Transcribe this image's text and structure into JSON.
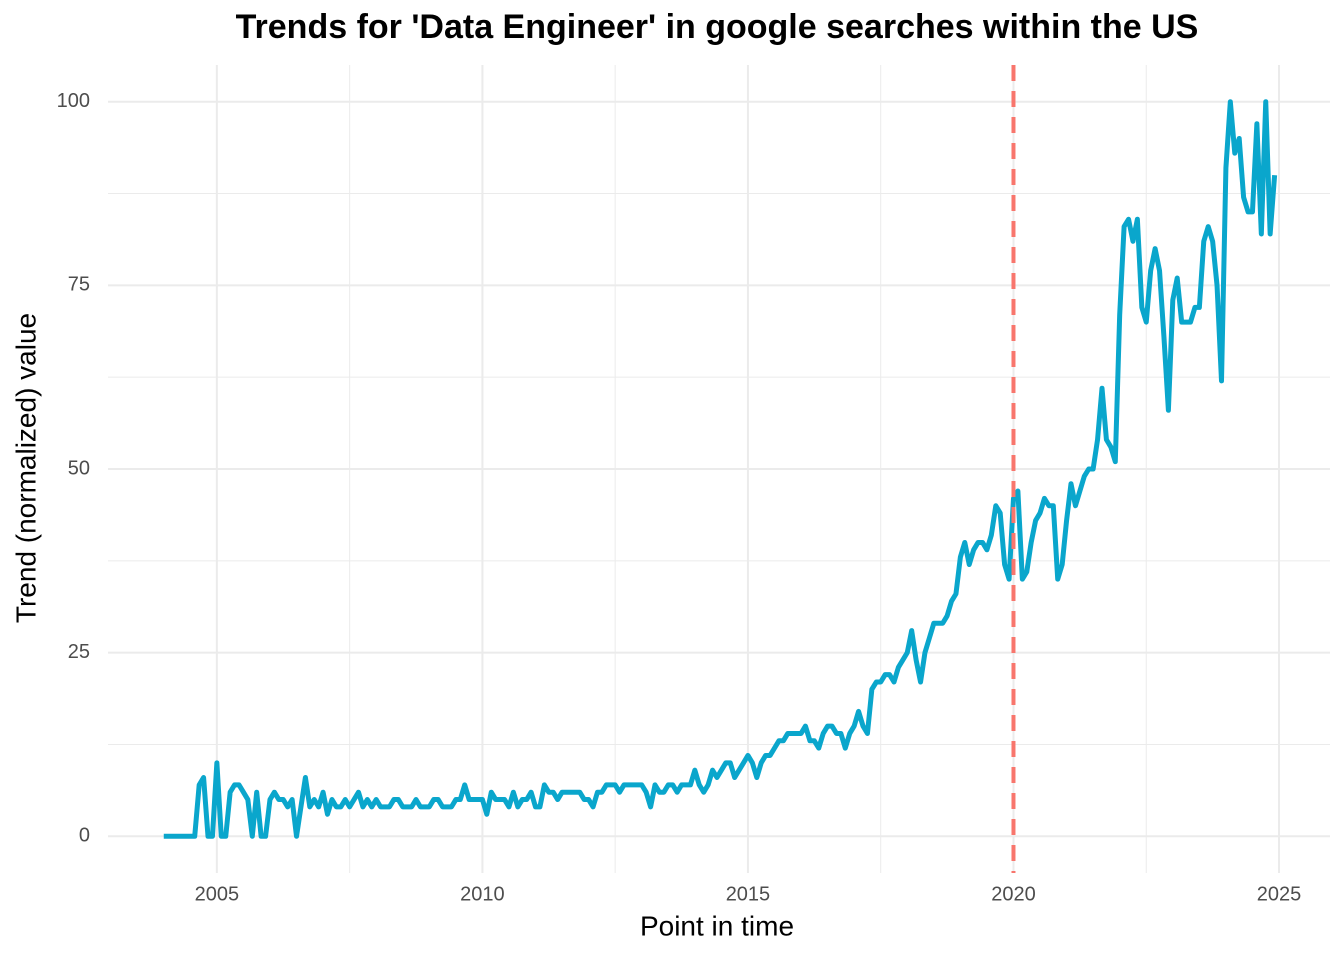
{
  "chart_data": {
    "type": "line",
    "title": "Trends for 'Data Engineer' in google searches within the US",
    "xlabel": "Point in time",
    "ylabel": "Trend (normalized) value",
    "x": [
      2004,
      2004.083,
      2004.167,
      2004.25,
      2004.333,
      2004.417,
      2004.5,
      2004.583,
      2004.667,
      2004.75,
      2004.833,
      2004.917,
      2005,
      2005.083,
      2005.167,
      2005.25,
      2005.333,
      2005.417,
      2005.5,
      2005.583,
      2005.667,
      2005.75,
      2005.833,
      2005.917,
      2006,
      2006.083,
      2006.167,
      2006.25,
      2006.333,
      2006.417,
      2006.5,
      2006.583,
      2006.667,
      2006.75,
      2006.833,
      2006.917,
      2007,
      2007.083,
      2007.167,
      2007.25,
      2007.333,
      2007.417,
      2007.5,
      2007.583,
      2007.667,
      2007.75,
      2007.833,
      2007.917,
      2008,
      2008.083,
      2008.167,
      2008.25,
      2008.333,
      2008.417,
      2008.5,
      2008.583,
      2008.667,
      2008.75,
      2008.833,
      2008.917,
      2009,
      2009.083,
      2009.167,
      2009.25,
      2009.333,
      2009.417,
      2009.5,
      2009.583,
      2009.667,
      2009.75,
      2009.833,
      2009.917,
      2010,
      2010.083,
      2010.167,
      2010.25,
      2010.333,
      2010.417,
      2010.5,
      2010.583,
      2010.667,
      2010.75,
      2010.833,
      2010.917,
      2011,
      2011.083,
      2011.167,
      2011.25,
      2011.333,
      2011.417,
      2011.5,
      2011.583,
      2011.667,
      2011.75,
      2011.833,
      2011.917,
      2012,
      2012.083,
      2012.167,
      2012.25,
      2012.333,
      2012.417,
      2012.5,
      2012.583,
      2012.667,
      2012.75,
      2012.833,
      2012.917,
      2013,
      2013.083,
      2013.167,
      2013.25,
      2013.333,
      2013.417,
      2013.5,
      2013.583,
      2013.667,
      2013.75,
      2013.833,
      2013.917,
      2014,
      2014.083,
      2014.167,
      2014.25,
      2014.333,
      2014.417,
      2014.5,
      2014.583,
      2014.667,
      2014.75,
      2014.833,
      2014.917,
      2015,
      2015.083,
      2015.167,
      2015.25,
      2015.333,
      2015.417,
      2015.5,
      2015.583,
      2015.667,
      2015.75,
      2015.833,
      2015.917,
      2016,
      2016.083,
      2016.167,
      2016.25,
      2016.333,
      2016.417,
      2016.5,
      2016.583,
      2016.667,
      2016.75,
      2016.833,
      2016.917,
      2017,
      2017.083,
      2017.167,
      2017.25,
      2017.333,
      2017.417,
      2017.5,
      2017.583,
      2017.667,
      2017.75,
      2017.833,
      2017.917,
      2018,
      2018.083,
      2018.167,
      2018.25,
      2018.333,
      2018.417,
      2018.5,
      2018.583,
      2018.667,
      2018.75,
      2018.833,
      2018.917,
      2019,
      2019.083,
      2019.167,
      2019.25,
      2019.333,
      2019.417,
      2019.5,
      2019.583,
      2019.667,
      2019.75,
      2019.833,
      2019.917,
      2020,
      2020.083,
      2020.167,
      2020.25,
      2020.333,
      2020.417,
      2020.5,
      2020.583,
      2020.667,
      2020.75,
      2020.833,
      2020.917,
      2021,
      2021.083,
      2021.167,
      2021.25,
      2021.333,
      2021.417,
      2021.5,
      2021.583,
      2021.667,
      2021.75,
      2021.833,
      2021.917,
      2022,
      2022.083,
      2022.167,
      2022.25,
      2022.333,
      2022.417,
      2022.5,
      2022.583,
      2022.667,
      2022.75,
      2022.833,
      2022.917,
      2023,
      2023.083,
      2023.167,
      2023.25,
      2023.333,
      2023.417,
      2023.5,
      2023.583,
      2023.667,
      2023.75,
      2023.833,
      2023.917,
      2024,
      2024.083,
      2024.167,
      2024.25,
      2024.333,
      2024.417,
      2024.5,
      2024.583,
      2024.667,
      2024.75,
      2024.833,
      2024.917
    ],
    "series": [
      {
        "color": "#0aa6cc",
        "values": [
          0,
          0,
          0,
          0,
          0,
          0,
          0,
          0,
          7,
          8,
          0,
          0,
          10,
          0,
          0,
          6,
          7,
          7,
          6,
          5,
          0,
          6,
          0,
          0,
          5,
          6,
          5,
          5,
          4,
          5,
          0,
          4,
          8,
          4,
          5,
          4,
          6,
          3,
          5,
          4,
          4,
          5,
          4,
          5,
          6,
          4,
          5,
          4,
          5,
          4,
          4,
          4,
          5,
          5,
          4,
          4,
          4,
          5,
          4,
          4,
          4,
          5,
          5,
          4,
          4,
          4,
          5,
          5,
          7,
          5,
          5,
          5,
          5,
          3,
          6,
          5,
          5,
          5,
          4,
          6,
          4,
          5,
          5,
          6,
          4,
          4,
          7,
          6,
          6,
          5,
          6,
          6,
          6,
          6,
          6,
          5,
          5,
          4,
          6,
          6,
          7,
          7,
          7,
          6,
          7,
          7,
          7,
          7,
          7,
          6,
          4,
          7,
          6,
          6,
          7,
          7,
          6,
          7,
          7,
          7,
          9,
          7,
          6,
          7,
          9,
          8,
          9,
          10,
          10,
          8,
          9,
          10,
          11,
          10,
          8,
          10,
          11,
          11,
          12,
          13,
          13,
          14,
          14,
          14,
          14,
          15,
          13,
          13,
          12,
          14,
          15,
          15,
          14,
          14,
          12,
          14,
          15,
          17,
          15,
          14,
          20,
          21,
          21,
          22,
          22,
          21,
          23,
          24,
          25,
          28,
          24,
          21,
          25,
          27,
          29,
          29,
          29,
          30,
          32,
          33,
          38,
          40,
          37,
          39,
          40,
          40,
          39,
          41,
          45,
          44,
          37,
          35,
          46,
          47,
          35,
          36,
          40,
          43,
          44,
          46,
          45,
          45,
          35,
          37,
          43,
          48,
          45,
          47,
          49,
          50,
          50,
          54,
          61,
          54,
          53,
          51,
          71,
          83,
          84,
          81,
          84,
          72,
          70,
          77,
          80,
          77,
          68,
          58,
          73,
          76,
          70,
          70,
          70,
          72,
          72,
          81,
          83,
          81,
          75,
          62,
          91,
          100,
          93,
          95,
          87,
          85,
          85,
          97,
          82,
          100,
          82,
          90
        ]
      }
    ],
    "xlim": [
      2002.95,
      2025.96
    ],
    "xticks": [
      2005,
      2010,
      2015,
      2020,
      2025
    ],
    "x_minor_ticks": [
      2007.5,
      2012.5,
      2017.5,
      2022.5
    ],
    "ylim": [
      -5,
      105
    ],
    "yticks": [
      0,
      25,
      50,
      75,
      100
    ],
    "y_minor_ticks": [
      12.5,
      37.5,
      62.5,
      87.5
    ],
    "grid": true,
    "vline": {
      "x": 2020,
      "color": "#f8766d"
    }
  }
}
